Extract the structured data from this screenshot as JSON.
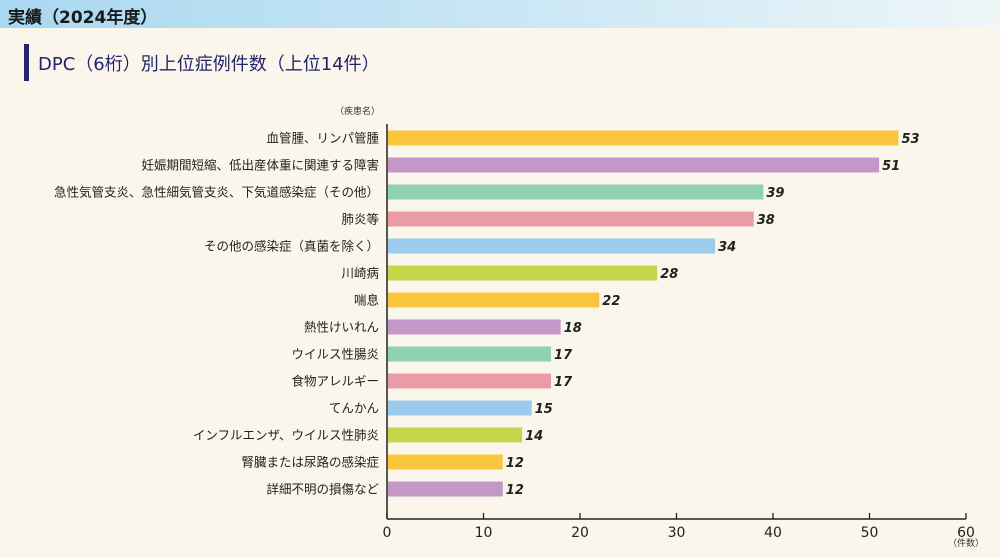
{
  "header": {
    "title": "実績（2024年度）"
  },
  "chart_data": {
    "type": "bar",
    "orientation": "horizontal",
    "title": "DPC（6桁）別上位症例件数（上位14件）",
    "ylabel": "（疾患名）",
    "xlabel": "（件数）",
    "xlim": [
      0,
      60
    ],
    "xticks": [
      0,
      10,
      20,
      30,
      40,
      50,
      60
    ],
    "grid": false,
    "categories": [
      "血管腫、リンパ管腫",
      "妊娠期間短縮、低出産体重に関連する障害",
      "急性気管支炎、急性細気管支炎、下気道感染症（その他）",
      "肺炎等",
      "その他の感染症（真菌を除く）",
      "川崎病",
      "喘息",
      "熱性けいれん",
      "ウイルス性腸炎",
      "食物アレルギー",
      "てんかん",
      "インフルエンザ、ウイルス性肺炎",
      "腎臓または尿路の感染症",
      "詳細不明の損傷など"
    ],
    "values": [
      53,
      51,
      39,
      38,
      34,
      28,
      22,
      18,
      17,
      17,
      15,
      14,
      12,
      12
    ],
    "colors": [
      "#f9c53c",
      "#c498c6",
      "#8fd1b2",
      "#eb9ba6",
      "#9dcbee",
      "#c2d74a"
    ]
  }
}
